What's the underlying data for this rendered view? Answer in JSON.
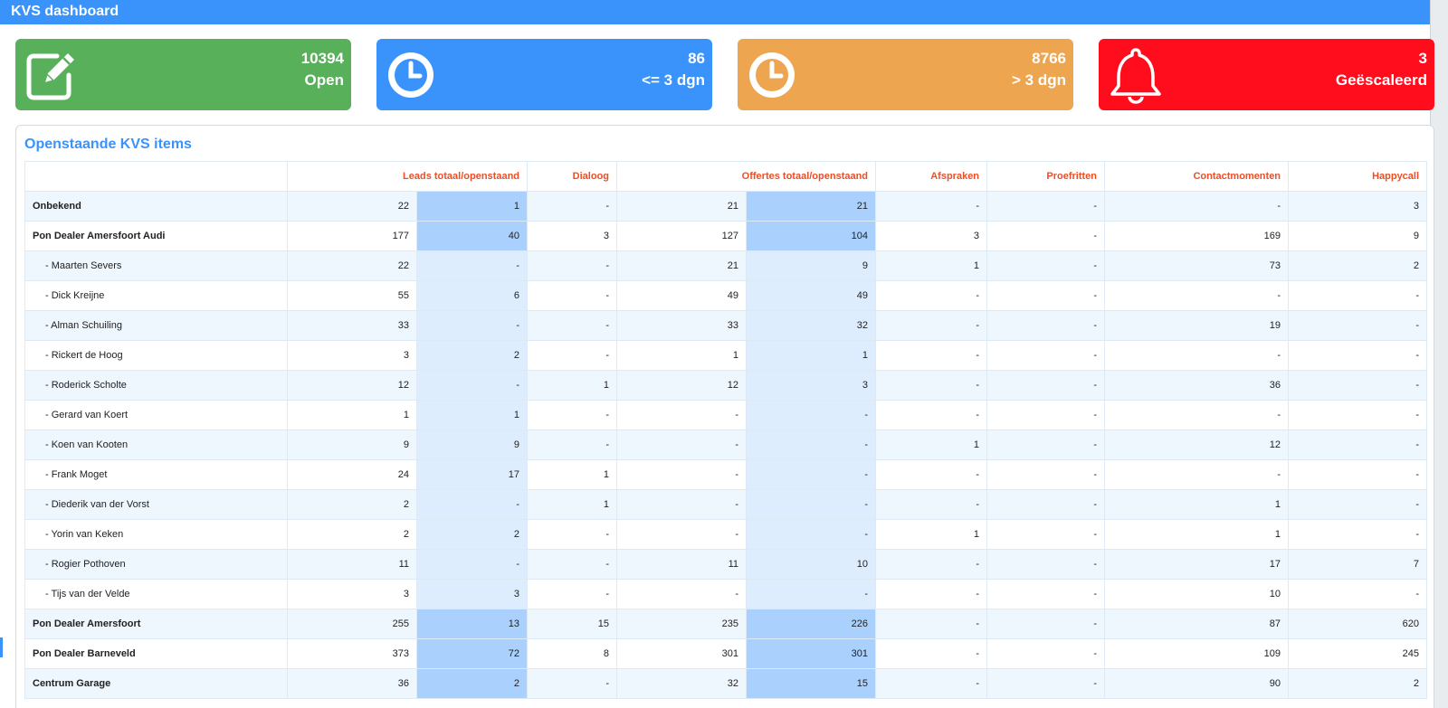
{
  "app": {
    "title": "KVS dashboard"
  },
  "cards": [
    {
      "value": "10394",
      "label": "Open",
      "icon": "edit-icon",
      "color": "#58b05a"
    },
    {
      "value": "86",
      "label": "<= 3 dgn",
      "icon": "clock-icon",
      "color": "#3a93fb"
    },
    {
      "value": "8766",
      "label": "> 3 dgn",
      "icon": "clock-icon",
      "color": "#eea54f"
    },
    {
      "value": "3",
      "label": "Geëscaleerd",
      "icon": "bell-icon",
      "color": "#ff0d1d"
    }
  ],
  "panel": {
    "title": "Openstaande KVS items",
    "headers": {
      "leads": "Leads totaal/openstaand",
      "dialoog": "Dialoog",
      "offertes": "Offertes totaal/openstaand",
      "afspraken": "Afspraken",
      "proefritten": "Proefritten",
      "contactmomenten": "Contactmomenten",
      "happycall": "Happycall"
    },
    "rows": [
      {
        "type": "group",
        "name": "Onbekend",
        "cells": [
          "22",
          "1",
          "-",
          "21",
          "21",
          "-",
          "-",
          "-",
          "3"
        ]
      },
      {
        "type": "group",
        "name": "Pon Dealer Amersfoort Audi",
        "cells": [
          "177",
          "40",
          "3",
          "127",
          "104",
          "3",
          "-",
          "169",
          "9"
        ]
      },
      {
        "type": "indiv",
        "name": "- Maarten Severs",
        "cells": [
          "22",
          "-",
          "-",
          "21",
          "9",
          "1",
          "-",
          "73",
          "2"
        ]
      },
      {
        "type": "indiv",
        "name": "- Dick Kreijne",
        "cells": [
          "55",
          "6",
          "-",
          "49",
          "49",
          "-",
          "-",
          "-",
          "-"
        ]
      },
      {
        "type": "indiv",
        "name": "- Alman Schuiling",
        "cells": [
          "33",
          "-",
          "-",
          "33",
          "32",
          "-",
          "-",
          "19",
          "-"
        ]
      },
      {
        "type": "indiv",
        "name": "- Rickert de Hoog",
        "cells": [
          "3",
          "2",
          "-",
          "1",
          "1",
          "-",
          "-",
          "-",
          "-"
        ]
      },
      {
        "type": "indiv",
        "name": "- Roderick Scholte",
        "cells": [
          "12",
          "-",
          "1",
          "12",
          "3",
          "-",
          "-",
          "36",
          "-"
        ]
      },
      {
        "type": "indiv",
        "name": "- Gerard van Koert",
        "cells": [
          "1",
          "1",
          "-",
          "-",
          "-",
          "-",
          "-",
          "-",
          "-"
        ]
      },
      {
        "type": "indiv",
        "name": "- Koen van Kooten",
        "cells": [
          "9",
          "9",
          "-",
          "-",
          "-",
          "1",
          "-",
          "12",
          "-"
        ]
      },
      {
        "type": "indiv",
        "name": "- Frank Moget",
        "cells": [
          "24",
          "17",
          "1",
          "-",
          "-",
          "-",
          "-",
          "-",
          "-"
        ]
      },
      {
        "type": "indiv",
        "name": "- Diederik van der Vorst",
        "cells": [
          "2",
          "-",
          "1",
          "-",
          "-",
          "-",
          "-",
          "1",
          "-"
        ]
      },
      {
        "type": "indiv",
        "name": "- Yorin van Keken",
        "cells": [
          "2",
          "2",
          "-",
          "-",
          "-",
          "1",
          "-",
          "1",
          "-"
        ]
      },
      {
        "type": "indiv",
        "name": "- Rogier Pothoven",
        "cells": [
          "11",
          "-",
          "-",
          "11",
          "10",
          "-",
          "-",
          "17",
          "7"
        ]
      },
      {
        "type": "indiv",
        "name": "- Tijs van der Velde",
        "cells": [
          "3",
          "3",
          "-",
          "-",
          "-",
          "-",
          "-",
          "10",
          "-"
        ]
      },
      {
        "type": "group",
        "name": "Pon Dealer Amersfoort",
        "cells": [
          "255",
          "13",
          "15",
          "235",
          "226",
          "-",
          "-",
          "87",
          "620"
        ]
      },
      {
        "type": "group",
        "name": "Pon Dealer Barneveld",
        "cells": [
          "373",
          "72",
          "8",
          "301",
          "301",
          "-",
          "-",
          "109",
          "245"
        ]
      },
      {
        "type": "group",
        "name": "Centrum Garage",
        "cells": [
          "36",
          "2",
          "-",
          "32",
          "15",
          "-",
          "-",
          "90",
          "2"
        ]
      }
    ]
  }
}
